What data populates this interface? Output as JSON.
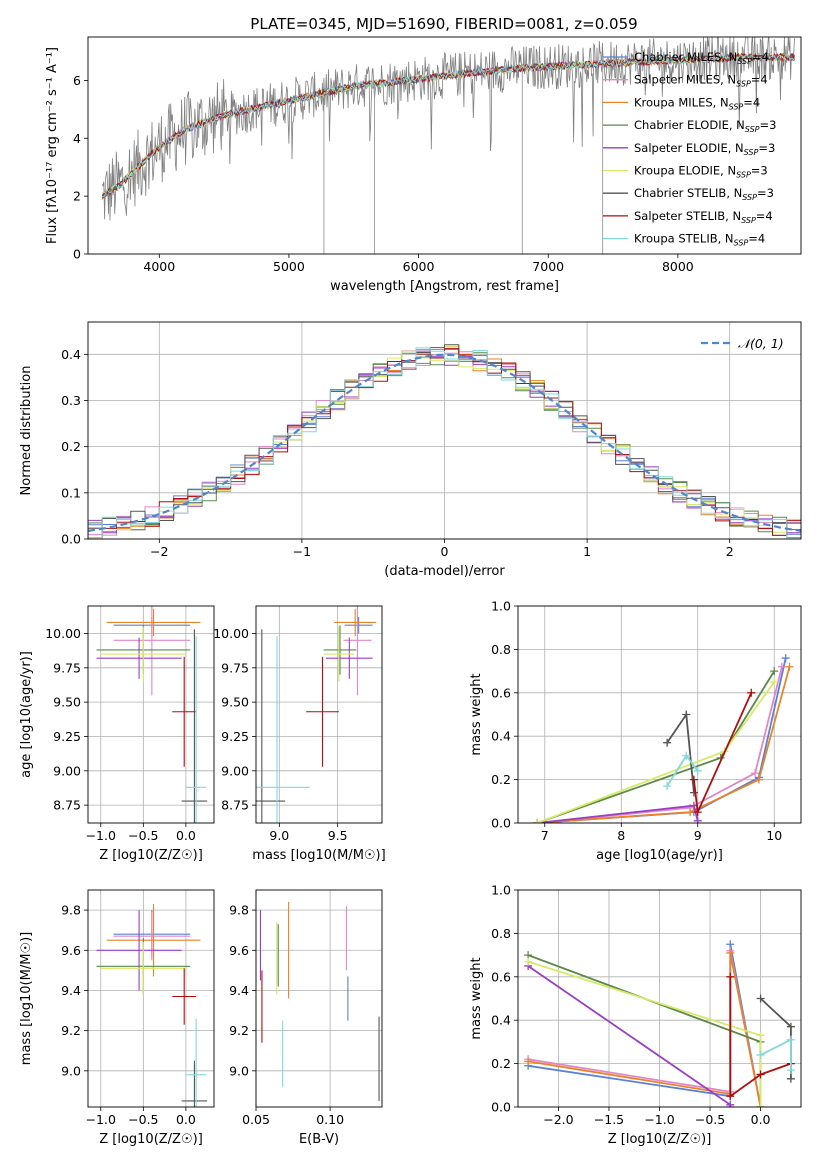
{
  "figure_title": "PLATE=0345, MJD=51690, FIBERID=0081, z=0.059",
  "colors": {
    "Chabrier MILES": "#5b80d8",
    "Salpeter MILES": "#e088c8",
    "Kroupa MILES": "#e8832a",
    "Chabrier ELODIE": "#5a8a4a",
    "Salpeter ELODIE": "#9a3ec4",
    "Kroupa ELODIE": "#d6ea66",
    "Chabrier STELIB": "#555555",
    "Salpeter STELIB": "#b00f0f",
    "Kroupa STELIB": "#82d8dc",
    "normal_curve": "#4f86cc",
    "grid": "#b0b0b0"
  },
  "chart_data": [
    {
      "id": "spectrum",
      "type": "line",
      "title": "PLATE=0345, MJD=51690, FIBERID=0081, z=0.059",
      "xlabel": "wavelength [Angstrom, rest frame]",
      "ylabel": "Flux [fλ10⁻¹⁷ erg cm⁻² s⁻¹ A⁻¹]",
      "xlim": [
        3450,
        8950
      ],
      "ylim": [
        0,
        7.5
      ],
      "xticks": [
        4000,
        5000,
        6000,
        7000,
        8000
      ],
      "yticks": [
        0,
        2,
        4,
        6
      ],
      "grid": false,
      "legend": "right",
      "legend_entries": [
        {
          "label": "Chabrier MILES, NSSP=4",
          "key": "Chabrier MILES"
        },
        {
          "label": "Salpeter MILES, NSSP=4",
          "key": "Salpeter MILES"
        },
        {
          "label": "Kroupa MILES, NSSP=4",
          "key": "Kroupa MILES"
        },
        {
          "label": "Chabrier ELODIE, NSSP=3",
          "key": "Chabrier ELODIE"
        },
        {
          "label": "Salpeter ELODIE, NSSP=3",
          "key": "Salpeter ELODIE"
        },
        {
          "label": "Kroupa ELODIE, NSSP=3",
          "key": "Kroupa ELODIE"
        },
        {
          "label": "Chabrier STELIB, NSSP=3",
          "key": "Chabrier STELIB"
        },
        {
          "label": "Salpeter STELIB, NSSP=4",
          "key": "Salpeter STELIB"
        },
        {
          "label": "Kroupa STELIB, NSSP=4",
          "key": "Kroupa STELIB"
        }
      ],
      "continuum": {
        "x": [
          3560,
          3700,
          3900,
          4000,
          4200,
          4500,
          4800,
          5100,
          5500,
          5900,
          6300,
          6700,
          7100,
          7500,
          8000,
          8500,
          8900
        ],
        "y": [
          2.0,
          2.4,
          3.3,
          3.7,
          4.3,
          4.8,
          5.1,
          5.4,
          5.8,
          6.0,
          6.2,
          6.4,
          6.5,
          6.6,
          6.7,
          6.8,
          6.8
        ]
      },
      "data_color": "#808080"
    },
    {
      "id": "residuals",
      "type": "line",
      "xlabel": "(data-model)/error",
      "ylabel": "Normed distribution",
      "xlim": [
        -2.5,
        2.5
      ],
      "ylim": [
        0,
        0.47
      ],
      "xticks": [
        -2,
        -1,
        0,
        1,
        2
      ],
      "yticks": [
        0.0,
        0.1,
        0.2,
        0.3,
        0.4
      ],
      "grid": true,
      "legend": "top-right",
      "legend_entries": [
        {
          "label": "𝒩(0, 1)"
        }
      ],
      "bin_width": 0.1,
      "reference_curve": "standard normal"
    },
    {
      "id": "age_vs_Z",
      "type": "scatter",
      "xlabel": "Z [log10(Z/Z☉)]",
      "ylabel": "age  [log10(age/yr)]",
      "xlim": [
        -1.15,
        0.33
      ],
      "ylim": [
        8.62,
        10.2
      ],
      "xticks": [
        -1.0,
        -0.5,
        0.0
      ],
      "yticks": [
        8.75,
        9.0,
        9.25,
        9.5,
        9.75,
        10.0
      ],
      "grid": true
    },
    {
      "id": "age_vs_mass",
      "type": "scatter",
      "xlabel": "mass [log10(M/M☉)]",
      "ylabel": "",
      "xlim": [
        8.8,
        9.88
      ],
      "ylim": [
        8.62,
        10.2
      ],
      "xticks": [
        9.0,
        9.5
      ],
      "yticks": [
        8.75,
        9.0,
        9.25,
        9.5,
        9.75,
        10.0
      ],
      "grid": true
    },
    {
      "id": "weight_vs_age",
      "type": "line",
      "xlabel": "age  [log10(age/yr)]",
      "ylabel": "mass weight",
      "xlim": [
        6.65,
        10.35
      ],
      "ylim": [
        0,
        1.0
      ],
      "xticks": [
        7,
        8,
        9,
        10
      ],
      "yticks": [
        0.0,
        0.2,
        0.4,
        0.6,
        0.8,
        1.0
      ],
      "grid": true,
      "series": [
        {
          "key": "Chabrier MILES",
          "x": [
            6.9,
            8.95,
            9.8,
            10.15
          ],
          "y": [
            0.0,
            0.05,
            0.21,
            0.76
          ]
        },
        {
          "key": "Salpeter MILES",
          "x": [
            6.9,
            8.9,
            9.75,
            10.1
          ],
          "y": [
            0.0,
            0.07,
            0.23,
            0.72
          ]
        },
        {
          "key": "Kroupa MILES",
          "x": [
            6.9,
            8.9,
            9.8,
            10.2
          ],
          "y": [
            0.0,
            0.05,
            0.2,
            0.72
          ]
        },
        {
          "key": "Chabrier ELODIE",
          "x": [
            6.9,
            9.3,
            10.0
          ],
          "y": [
            0.0,
            0.3,
            0.7
          ]
        },
        {
          "key": "Salpeter ELODIE",
          "x": [
            6.9,
            8.95,
            9.0
          ],
          "y": [
            0.0,
            0.08,
            0.01
          ]
        },
        {
          "key": "Kroupa ELODIE",
          "x": [
            6.9,
            9.35,
            10.0
          ],
          "y": [
            0.0,
            0.33,
            0.65
          ]
        },
        {
          "key": "Chabrier STELIB",
          "x": [
            8.6,
            8.85,
            8.95
          ],
          "y": [
            0.37,
            0.5,
            0.14
          ]
        },
        {
          "key": "Salpeter STELIB",
          "x": [
            8.95,
            9.0,
            9.7
          ],
          "y": [
            0.2,
            0.05,
            0.6
          ]
        },
        {
          "key": "Kroupa STELIB",
          "x": [
            8.6,
            8.85,
            9.0
          ],
          "y": [
            0.17,
            0.31,
            0.24
          ]
        }
      ]
    },
    {
      "id": "mass_vs_Z",
      "type": "scatter",
      "xlabel": "Z [log10(Z/Z☉)]",
      "ylabel": "mass [log10(M/M☉)]",
      "xlim": [
        -1.15,
        0.33
      ],
      "ylim": [
        8.82,
        9.9
      ],
      "xticks": [
        -1.0,
        -0.5,
        0.0
      ],
      "yticks": [
        9.0,
        9.2,
        9.4,
        9.6,
        9.8
      ],
      "grid": true
    },
    {
      "id": "mass_vs_ebv",
      "type": "scatter",
      "xlabel": "E(B-V)",
      "ylabel": "",
      "xlim": [
        0.05,
        0.135
      ],
      "ylim": [
        8.82,
        9.9
      ],
      "xticks": [
        0.05,
        0.1
      ],
      "yticks": [
        9.0,
        9.2,
        9.4,
        9.6,
        9.8
      ],
      "grid": true
    },
    {
      "id": "weight_vs_Z",
      "type": "line",
      "xlabel": "Z [log10(Z/Z☉)]",
      "ylabel": "mass weight",
      "xlim": [
        -2.4,
        0.4
      ],
      "ylim": [
        0,
        1.0
      ],
      "xticks": [
        -2.0,
        -1.5,
        -1.0,
        -0.5,
        0.0
      ],
      "yticks": [
        0.0,
        0.2,
        0.4,
        0.6,
        0.8,
        1.0
      ],
      "grid": true,
      "series": [
        {
          "key": "Chabrier MILES",
          "x": [
            -2.3,
            -0.3,
            -0.3,
            0.0
          ],
          "y": [
            0.19,
            0.05,
            0.75,
            0.0
          ]
        },
        {
          "key": "Salpeter MILES",
          "x": [
            -2.3,
            -0.3,
            -0.3,
            0.0
          ],
          "y": [
            0.22,
            0.07,
            0.72,
            0.0
          ]
        },
        {
          "key": "Kroupa MILES",
          "x": [
            -2.3,
            -0.3,
            -0.3,
            0.0
          ],
          "y": [
            0.21,
            0.06,
            0.71,
            0.0
          ]
        },
        {
          "key": "Chabrier ELODIE",
          "x": [
            -2.3,
            0.0,
            0.0
          ],
          "y": [
            0.7,
            0.3,
            0.0
          ]
        },
        {
          "key": "Salpeter ELODIE",
          "x": [
            -2.3,
            -0.3,
            -0.3
          ],
          "y": [
            0.65,
            0.01,
            0.0
          ]
        },
        {
          "key": "Kroupa ELODIE",
          "x": [
            -2.3,
            0.0,
            0.0
          ],
          "y": [
            0.67,
            0.33,
            0.0
          ]
        },
        {
          "key": "Chabrier STELIB",
          "x": [
            0.0,
            0.3,
            0.3
          ],
          "y": [
            0.5,
            0.37,
            0.13
          ]
        },
        {
          "key": "Salpeter STELIB",
          "x": [
            -0.3,
            -0.3,
            0.0,
            0.3
          ],
          "y": [
            0.6,
            0.05,
            0.15,
            0.2
          ]
        },
        {
          "key": "Kroupa STELIB",
          "x": [
            0.0,
            0.3,
            0.3
          ],
          "y": [
            0.24,
            0.31,
            0.17
          ]
        }
      ]
    }
  ],
  "error_points": {
    "Chabrier MILES": {
      "Z": -0.4,
      "Zerr": 0.45,
      "age": 10.06,
      "ageerr": 0.06,
      "mass": 9.68,
      "masserr": 0.12,
      "ebv": 0.112,
      "ebverr": 0.0,
      "ebv_mass_range": [
        9.25,
        9.47
      ]
    },
    "Salpeter MILES": {
      "Z": -0.4,
      "Zerr": 0.45,
      "age": 9.95,
      "ageerr": 0.4,
      "mass": 9.67,
      "masserr": 0.12,
      "ebv": 0.111,
      "ebverr": 0.0,
      "ebv_mass_range": [
        9.5,
        9.82
      ]
    },
    "Kroupa MILES": {
      "Z": -0.38,
      "Zerr": 0.55,
      "age": 10.08,
      "ageerr": 0.1,
      "mass": 9.65,
      "masserr": 0.18,
      "ebv": 0.072,
      "ebverr": 0.0,
      "ebv_mass_range": [
        9.36,
        9.84
      ]
    },
    "Chabrier ELODIE": {
      "Z": -0.5,
      "Zerr": 0.55,
      "age": 9.88,
      "ageerr": 0.18,
      "mass": 9.52,
      "masserr": 0.14,
      "ebv": 0.065,
      "ebverr": 0.0,
      "ebv_mass_range": [
        9.42,
        9.73
      ]
    },
    "Salpeter ELODIE": {
      "Z": -0.55,
      "Zerr": 0.5,
      "age": 9.82,
      "ageerr": 0.15,
      "mass": 9.6,
      "masserr": 0.2,
      "ebv": 0.053,
      "ebverr": 0.0,
      "ebv_mass_range": [
        9.45,
        9.8
      ]
    },
    "Kroupa ELODIE": {
      "Z": -0.5,
      "Zerr": 0.5,
      "age": 9.85,
      "ageerr": 0.2,
      "mass": 9.51,
      "masserr": 0.13,
      "ebv": 0.064,
      "ebverr": 0.0,
      "ebv_mass_range": [
        9.38,
        9.74
      ]
    },
    "Chabrier STELIB": {
      "Z": 0.1,
      "Zerr": 0.15,
      "age": 8.78,
      "ageerr": 1.25,
      "mass": 8.85,
      "masserr": 0.2,
      "ebv": 0.133,
      "ebverr": 0.0,
      "ebv_mass_range": [
        8.85,
        9.27
      ]
    },
    "Salpeter STELIB": {
      "Z": -0.02,
      "Zerr": 0.14,
      "age": 9.43,
      "ageerr": 0.4,
      "mass": 9.37,
      "masserr": 0.14,
      "ebv": 0.054,
      "ebverr": 0.0,
      "ebv_mass_range": [
        9.14,
        9.5
      ]
    },
    "Kroupa STELIB": {
      "Z": 0.12,
      "Zerr": 0.12,
      "age": 8.88,
      "ageerr": 1.1,
      "mass": 8.98,
      "masserr": 0.28,
      "ebv": 0.068,
      "ebverr": 0.0,
      "ebv_mass_range": [
        8.92,
        9.25
      ]
    }
  }
}
